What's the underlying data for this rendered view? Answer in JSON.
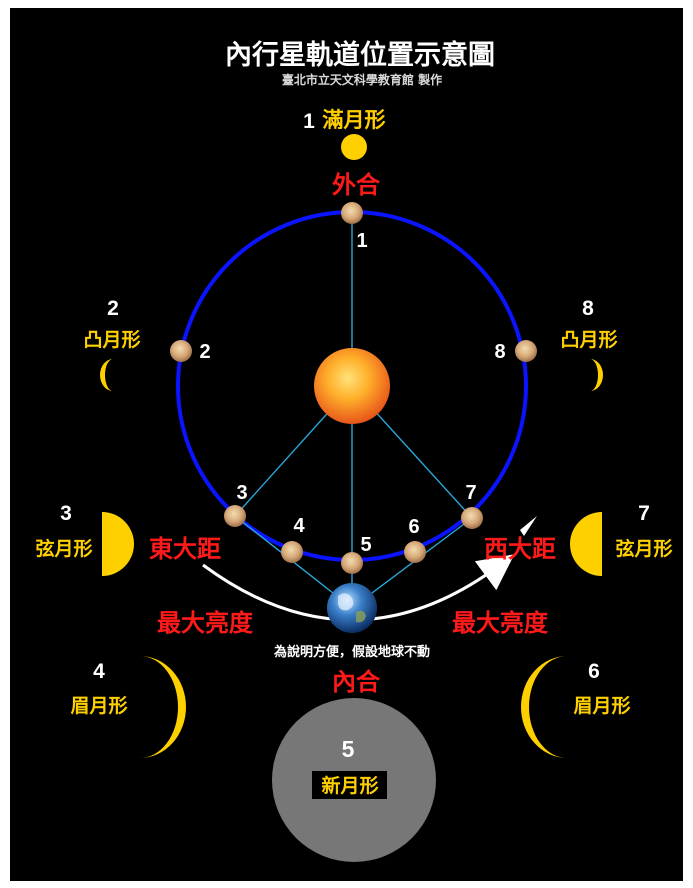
{
  "title": "內行星軌道位置示意圖",
  "credit": "臺北市立天文科學教育館 製作",
  "labels": {
    "superior_conjunction": "外合",
    "inferior_conjunction": "內合",
    "east_elongation": "東大距",
    "west_elongation": "西大距",
    "brightest": "最大亮度",
    "note": "為說明方便，假設地球不動"
  },
  "orbit_numbers": [
    "1",
    "2",
    "3",
    "4",
    "5",
    "6",
    "7",
    "8"
  ],
  "phases": [
    {
      "n": "1",
      "name": "滿月形"
    },
    {
      "n": "2",
      "name": "凸月形"
    },
    {
      "n": "3",
      "name": "弦月形"
    },
    {
      "n": "4",
      "name": "眉月形"
    },
    {
      "n": "5",
      "name": "新月形"
    },
    {
      "n": "6",
      "name": "眉月形"
    },
    {
      "n": "7",
      "name": "弦月形"
    },
    {
      "n": "8",
      "name": "凸月形"
    }
  ],
  "colors": {
    "background": "#000000",
    "orbit": "#0000ff",
    "sun": "#ff8c1a",
    "red_label": "#ff1a1a",
    "phase_yellow": "#ffd000",
    "new_moon_gray": "#777777",
    "lines": "#2aa6d6"
  }
}
